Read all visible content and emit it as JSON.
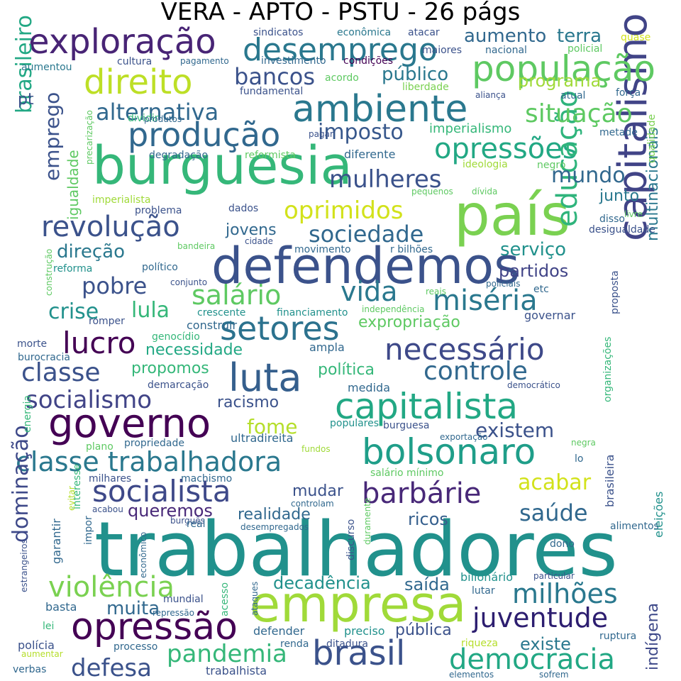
{
  "title": "VERA - APTO - PSTU - 26 págs",
  "words": [
    {
      "t": "trabalhadores",
      "c": "#21918c"
    },
    {
      "t": "burguesia",
      "c": "#35b779"
    },
    {
      "t": "defendemos",
      "c": "#3b528b"
    },
    {
      "t": "país",
      "c": "#7ad151"
    },
    {
      "t": "empresa",
      "c": "#a0da39"
    },
    {
      "t": "ambiente",
      "c": "#2a788e"
    },
    {
      "t": "governo",
      "c": "#440154"
    },
    {
      "t": "capitalista",
      "c": "#22a884"
    },
    {
      "t": "bolsonaro",
      "c": "#1f9e89"
    },
    {
      "t": "capitalismo",
      "c": "#414487"
    },
    {
      "t": "luta",
      "c": "#355f8d"
    },
    {
      "t": "opressão",
      "c": "#440154"
    },
    {
      "t": "população",
      "c": "#5ec962"
    },
    {
      "t": "exploração",
      "c": "#482475"
    },
    {
      "t": "classe trabalhadora",
      "c": "#2a788e"
    },
    {
      "t": "socialista",
      "c": "#3e4989"
    },
    {
      "t": "brasil",
      "c": "#3b528b"
    },
    {
      "t": "democracia",
      "c": "#22a884"
    },
    {
      "t": "barbárie",
      "c": "#482878"
    },
    {
      "t": "direito",
      "c": "#bddf26"
    },
    {
      "t": "desemprego",
      "c": "#2a788e"
    },
    {
      "t": "revolução",
      "c": "#3b528b"
    },
    {
      "t": "setores",
      "c": "#2c728e"
    },
    {
      "t": "necessário",
      "c": "#3e4989"
    },
    {
      "t": "produção",
      "c": "#31688e"
    },
    {
      "t": "opressões",
      "c": "#22a884"
    },
    {
      "t": "salário",
      "c": "#5ec962"
    },
    {
      "t": "vida",
      "c": "#2a788e"
    },
    {
      "t": "miséria",
      "c": "#2a788e"
    },
    {
      "t": "controle",
      "c": "#31688e"
    },
    {
      "t": "classe",
      "c": "#3b528b"
    },
    {
      "t": "lucro",
      "c": "#440154"
    },
    {
      "t": "violência",
      "c": "#7ad151"
    },
    {
      "t": "milhões",
      "c": "#2a788e"
    },
    {
      "t": "juventude",
      "c": "#2d1e70"
    },
    {
      "t": "educação",
      "c": "#2fb47c"
    },
    {
      "t": "situação",
      "c": "#5ec962"
    },
    {
      "t": "mulheres",
      "c": "#3b528b"
    },
    {
      "t": "oprimidos",
      "c": "#d2e21b"
    },
    {
      "t": "sociedade",
      "c": "#31688e"
    },
    {
      "t": "socialismo",
      "c": "#414487"
    },
    {
      "t": "pandemia",
      "c": "#35b779"
    },
    {
      "t": "defesa",
      "c": "#3b528b"
    },
    {
      "t": "bancos",
      "c": "#3b528b"
    },
    {
      "t": "alternativa",
      "c": "#31688e"
    },
    {
      "t": "imposto",
      "c": "#38588c"
    },
    {
      "t": "mundo",
      "c": "#31688e"
    },
    {
      "t": "pobre",
      "c": "#3b528b"
    },
    {
      "t": "crise",
      "c": "#21918c"
    },
    {
      "t": "lula",
      "c": "#35b779"
    },
    {
      "t": "fome",
      "c": "#b5de2b"
    },
    {
      "t": "existem",
      "c": "#3b528b"
    },
    {
      "t": "acabar",
      "c": "#d2e21b"
    },
    {
      "t": "saúde",
      "c": "#31688e"
    },
    {
      "t": "dominação",
      "c": "#3e4989"
    },
    {
      "t": "muita",
      "c": "#31688e"
    },
    {
      "t": "brasileiro",
      "c": "#22a884"
    },
    {
      "t": "emprego",
      "c": "#3b528b"
    },
    {
      "t": "público",
      "c": "#2a788e"
    },
    {
      "t": "programa",
      "c": "#a0da39"
    },
    {
      "t": "aumento",
      "c": "#31688e"
    },
    {
      "t": "terra",
      "c": "#2a788e"
    },
    {
      "t": "serviço",
      "c": "#21918c"
    },
    {
      "t": "partidos",
      "c": "#414487"
    },
    {
      "t": "multinacionais",
      "c": "#2a788e"
    },
    {
      "t": "direção",
      "c": "#2a788e"
    },
    {
      "t": "jovens",
      "c": "#31688e"
    },
    {
      "t": "necessidade",
      "c": "#22a884"
    },
    {
      "t": "expropriação",
      "c": "#5ec962"
    },
    {
      "t": "propomos",
      "c": "#35b779"
    },
    {
      "t": "política",
      "c": "#35b779"
    },
    {
      "t": "queremos",
      "c": "#482878"
    },
    {
      "t": "realidade",
      "c": "#31688e"
    },
    {
      "t": "ricos",
      "c": "#355f8d"
    },
    {
      "t": "decadência",
      "c": "#21918c"
    },
    {
      "t": "saída",
      "c": "#31688e"
    },
    {
      "t": "existe",
      "c": "#2a788e"
    },
    {
      "t": "indígena",
      "c": "#3e4989"
    },
    {
      "t": "racismo",
      "c": "#3b528b"
    },
    {
      "t": "mudar",
      "c": "#3b528b"
    },
    {
      "t": "imperialismo",
      "c": "#35b779"
    },
    {
      "t": "junto",
      "c": "#2a788e"
    },
    {
      "t": "igualdade",
      "c": "#5ec962"
    },
    {
      "t": "pública",
      "c": "#3b528b"
    },
    {
      "t": "pt",
      "c": "#3b528b"
    },
    {
      "t": "sindicatos",
      "c": "#3b528b"
    },
    {
      "t": "econômica",
      "c": "#2a788e"
    },
    {
      "t": "atacar",
      "c": "#3b528b"
    },
    {
      "t": "quase",
      "c": "#d2e21b"
    },
    {
      "t": "maiores",
      "c": "#3b528b"
    },
    {
      "t": "nacional",
      "c": "#31688e"
    },
    {
      "t": "policial",
      "c": "#5ec962"
    },
    {
      "t": "aumentou",
      "c": "#2a788e"
    },
    {
      "t": "cultura",
      "c": "#3b528b"
    },
    {
      "t": "pagamento",
      "c": "#31688e"
    },
    {
      "t": "investimento",
      "c": "#31688e"
    },
    {
      "t": "condições",
      "c": "#440154"
    },
    {
      "t": "acordo",
      "c": "#5ec962"
    },
    {
      "t": "liberdade",
      "c": "#7ad151"
    },
    {
      "t": "fundamental",
      "c": "#3b528b"
    },
    {
      "t": "aliança",
      "c": "#3b528b"
    },
    {
      "t": "atual",
      "c": "#31688e"
    },
    {
      "t": "força",
      "c": "#31688e"
    },
    {
      "t": "dividir",
      "c": "#35b779"
    },
    {
      "t": "produtos",
      "c": "#31688e"
    },
    {
      "t": "pagar",
      "c": "#3b528b"
    },
    {
      "t": "metade",
      "c": "#31688e"
    },
    {
      "t": "qualidade",
      "c": "#7ad151"
    },
    {
      "t": "precarização",
      "c": "#5ec962"
    },
    {
      "t": "degradação",
      "c": "#31688e"
    },
    {
      "t": "reformista",
      "c": "#5ec962"
    },
    {
      "t": "diferente",
      "c": "#31688e"
    },
    {
      "t": "ideologia",
      "c": "#a0da39"
    },
    {
      "t": "negro",
      "c": "#5ec962"
    },
    {
      "t": "pequenos",
      "c": "#5ec962"
    },
    {
      "t": "dívida",
      "c": "#5ec962"
    },
    {
      "t": "imperialista",
      "c": "#a0da39"
    },
    {
      "t": "problema",
      "c": "#3b528b"
    },
    {
      "t": "dados",
      "c": "#3b528b"
    },
    {
      "t": "disso",
      "c": "#31688e"
    },
    {
      "t": "livre",
      "c": "#5ec962"
    },
    {
      "t": "desigualdade",
      "c": "#3b528b"
    },
    {
      "t": "bandeira",
      "c": "#5ec962"
    },
    {
      "t": "cidade",
      "c": "#3b528b"
    },
    {
      "t": "movimento",
      "c": "#31688e"
    },
    {
      "t": "r bilhões",
      "c": "#31688e"
    },
    {
      "t": "construção",
      "c": "#5ec962"
    },
    {
      "t": "reforma",
      "c": "#21918c"
    },
    {
      "t": "político",
      "c": "#31688e"
    },
    {
      "t": "conjunto",
      "c": "#3b528b"
    },
    {
      "t": "reais",
      "c": "#5ec962"
    },
    {
      "t": "policiais",
      "c": "#31688e"
    },
    {
      "t": "etc",
      "c": "#31688e"
    },
    {
      "t": "proposta",
      "c": "#3b528b"
    },
    {
      "t": "crescente",
      "c": "#21918c"
    },
    {
      "t": "financiamento",
      "c": "#21918c"
    },
    {
      "t": "independência",
      "c": "#5ec962"
    },
    {
      "t": "governar",
      "c": "#3b528b"
    },
    {
      "t": "romper",
      "c": "#3b528b"
    },
    {
      "t": "construir",
      "c": "#31688e"
    },
    {
      "t": "genocídio",
      "c": "#35b779"
    },
    {
      "t": "morte",
      "c": "#3b528b"
    },
    {
      "t": "ampla",
      "c": "#31688e"
    },
    {
      "t": "burocracia",
      "c": "#31688e"
    },
    {
      "t": "organizações",
      "c": "#35b779"
    },
    {
      "t": "demarcação",
      "c": "#3b528b"
    },
    {
      "t": "democrático",
      "c": "#3b528b"
    },
    {
      "t": "medida",
      "c": "#31688e"
    },
    {
      "t": "energia",
      "c": "#35b779"
    },
    {
      "t": "populares",
      "c": "#21918c"
    },
    {
      "t": "burguesa",
      "c": "#3b528b"
    },
    {
      "t": "exportação",
      "c": "#31688e"
    },
    {
      "t": "plano",
      "c": "#5ec962"
    },
    {
      "t": "propriedade",
      "c": "#31688e"
    },
    {
      "t": "ultradireita",
      "c": "#31688e"
    },
    {
      "t": "fundos",
      "c": "#a0da39"
    },
    {
      "t": "negra",
      "c": "#5ec962"
    },
    {
      "t": "lo",
      "c": "#31688e"
    },
    {
      "t": "brasileira",
      "c": "#3b528b"
    },
    {
      "t": "eleições",
      "c": "#21918c"
    },
    {
      "t": "salário mínimo",
      "c": "#5ec962"
    },
    {
      "t": "milhares",
      "c": "#3b528b"
    },
    {
      "t": "machismo",
      "c": "#31688e"
    },
    {
      "t": "interesse",
      "c": "#35b779"
    },
    {
      "t": "evitar",
      "c": "#b5de2b"
    },
    {
      "t": "acabou",
      "c": "#3b528b"
    },
    {
      "t": "controlam",
      "c": "#31688e"
    },
    {
      "t": "burguês",
      "c": "#3b528b"
    },
    {
      "t": "real",
      "c": "#31688e"
    },
    {
      "t": "desempregados",
      "c": "#31688e"
    },
    {
      "t": "discurso",
      "c": "#3b528b"
    },
    {
      "t": "duramente",
      "c": "#5ec962"
    },
    {
      "t": "garantir",
      "c": "#31688e"
    },
    {
      "t": "impor",
      "c": "#31688e"
    },
    {
      "t": "alimentos",
      "c": "#31688e"
    },
    {
      "t": "estrangeiros",
      "c": "#3b528b"
    },
    {
      "t": "econômico",
      "c": "#31688e"
    },
    {
      "t": "dono",
      "c": "#31688e"
    },
    {
      "t": "bilionário",
      "c": "#21918c"
    },
    {
      "t": "particular",
      "c": "#3b528b"
    },
    {
      "t": "lutar",
      "c": "#31688e"
    },
    {
      "t": "basta",
      "c": "#31688e"
    },
    {
      "t": "mundial",
      "c": "#3b528b"
    },
    {
      "t": "repressão",
      "c": "#31688e"
    },
    {
      "t": "acesso",
      "c": "#35b779"
    },
    {
      "t": "ataques",
      "c": "#31688e"
    },
    {
      "t": "lei",
      "c": "#35b779"
    },
    {
      "t": "defender",
      "c": "#31688e"
    },
    {
      "t": "preciso",
      "c": "#21918c"
    },
    {
      "t": "polícia",
      "c": "#3b528b"
    },
    {
      "t": "processo",
      "c": "#31688e"
    },
    {
      "t": "renda",
      "c": "#31688e"
    },
    {
      "t": "ditadura",
      "c": "#3b528b"
    },
    {
      "t": "riqueza",
      "c": "#b5de2b"
    },
    {
      "t": "ruptura",
      "c": "#31688e"
    },
    {
      "t": "aumentar",
      "c": "#b5de2b"
    },
    {
      "t": "verbas",
      "c": "#31688e"
    },
    {
      "t": "trabalhista",
      "c": "#3b528b"
    },
    {
      "t": "elementos",
      "c": "#31688e"
    },
    {
      "t": "sofrem",
      "c": "#31688e"
    }
  ]
}
